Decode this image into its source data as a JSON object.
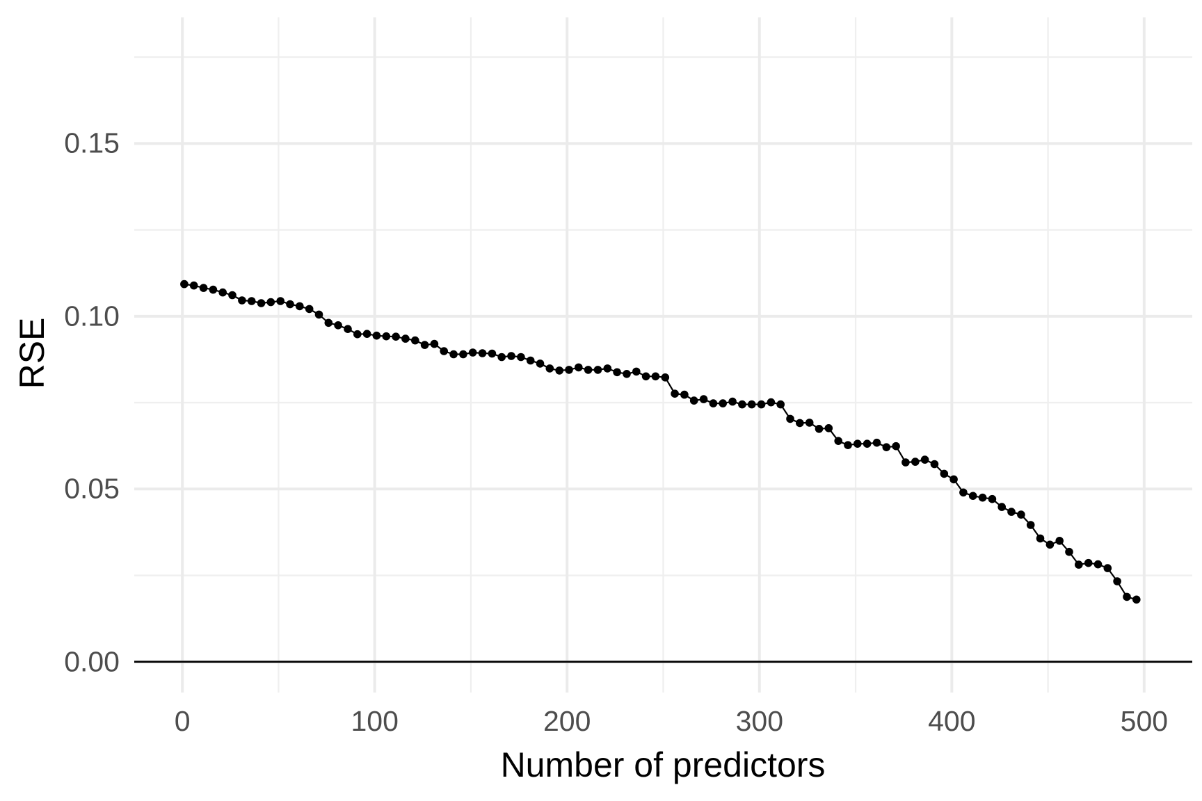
{
  "chart_data": {
    "type": "line",
    "title": "",
    "xlabel": "Number of predictors",
    "ylabel": "RSE",
    "legend": "none",
    "grid": true,
    "points_shown": true,
    "xlim": [
      -25,
      525
    ],
    "ylim": [
      -0.0089,
      0.1865
    ],
    "x_ticks": {
      "values": [
        0,
        100,
        200,
        300,
        400,
        500
      ],
      "labels": [
        "0",
        "100",
        "200",
        "300",
        "400",
        "500"
      ]
    },
    "y_ticks": {
      "values": [
        0,
        0.05,
        0.1,
        0.15
      ],
      "labels": [
        "0.00",
        "0.05",
        "0.10",
        "0.15"
      ]
    },
    "x_minor": [
      50,
      150,
      250,
      350,
      450
    ],
    "y_minor": [
      0.025,
      0.075,
      0.125,
      0.175
    ],
    "zero_line_y": 0,
    "x": [
      1,
      6,
      11,
      16,
      21,
      26,
      31,
      36,
      41,
      46,
      51,
      56,
      61,
      66,
      71,
      76,
      81,
      86,
      91,
      96,
      101,
      106,
      111,
      116,
      121,
      126,
      131,
      136,
      141,
      146,
      151,
      156,
      161,
      166,
      171,
      176,
      181,
      186,
      191,
      196,
      201,
      206,
      211,
      216,
      221,
      226,
      231,
      236,
      241,
      246,
      251,
      256,
      261,
      266,
      271,
      276,
      281,
      286,
      291,
      296,
      301,
      306,
      311,
      316,
      321,
      326,
      331,
      336,
      341,
      346,
      351,
      356,
      361,
      366,
      371,
      376,
      381,
      386,
      391,
      396,
      401,
      406,
      411,
      416,
      421,
      426,
      431,
      436,
      441,
      446,
      451,
      456,
      461,
      466,
      471,
      476,
      481,
      486,
      491,
      496
    ],
    "y": [
      0.1093,
      0.1089,
      0.1082,
      0.1077,
      0.1069,
      0.1061,
      0.1046,
      0.1044,
      0.1038,
      0.1041,
      0.1044,
      0.1035,
      0.1029,
      0.1021,
      0.1005,
      0.0981,
      0.0974,
      0.0963,
      0.0948,
      0.0949,
      0.0944,
      0.0942,
      0.0941,
      0.0935,
      0.093,
      0.0917,
      0.092,
      0.0899,
      0.089,
      0.089,
      0.0895,
      0.0893,
      0.0892,
      0.0882,
      0.0885,
      0.0882,
      0.0872,
      0.0863,
      0.0849,
      0.0843,
      0.0845,
      0.0852,
      0.0845,
      0.0845,
      0.0849,
      0.0838,
      0.0833,
      0.084,
      0.0826,
      0.0826,
      0.0823,
      0.0776,
      0.0773,
      0.0756,
      0.076,
      0.0748,
      0.0748,
      0.0753,
      0.0745,
      0.0745,
      0.0745,
      0.0751,
      0.0745,
      0.0703,
      0.0691,
      0.0692,
      0.0674,
      0.0676,
      0.0639,
      0.0627,
      0.0631,
      0.0631,
      0.0634,
      0.0621,
      0.0624,
      0.0577,
      0.0579,
      0.0585,
      0.0572,
      0.0544,
      0.0528,
      0.049,
      0.048,
      0.0475,
      0.0471,
      0.0448,
      0.0434,
      0.0426,
      0.0396,
      0.0357,
      0.0339,
      0.035,
      0.0318,
      0.0281,
      0.0286,
      0.0282,
      0.0271,
      0.0233,
      0.0188,
      0.018
    ],
    "style": {
      "background": "#ffffff",
      "point_color": "#000000",
      "line_color": "#000000",
      "grid_major_color": "#ebebeb",
      "grid_minor_color": "#efefef",
      "zero_line_color": "#000000",
      "tick_label_color": "#4d4d4d",
      "axis_title_color": "#000000"
    }
  }
}
